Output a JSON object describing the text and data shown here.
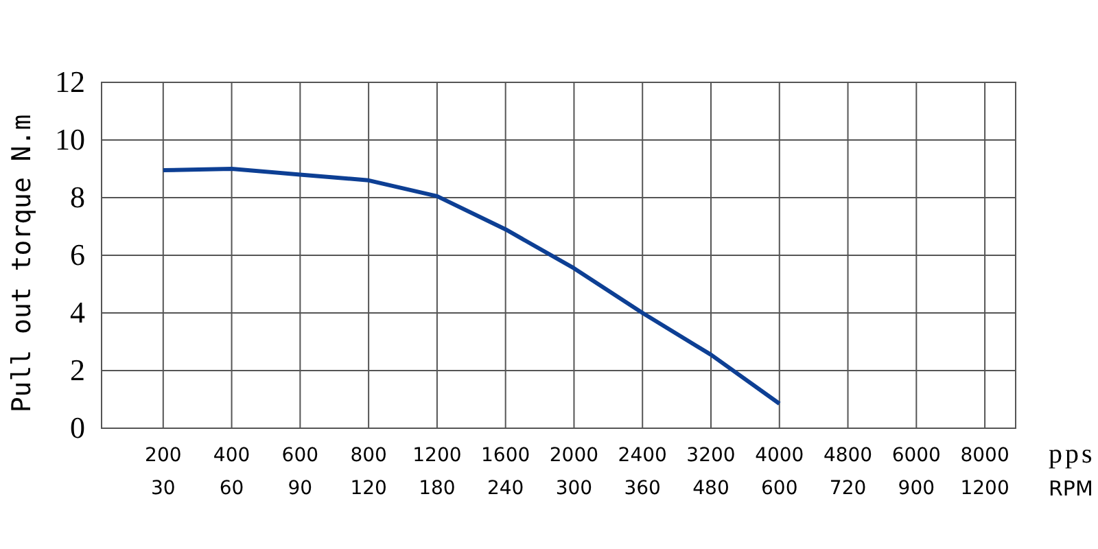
{
  "chart_data": {
    "type": "line",
    "ylabel": "Pull out torque N.m",
    "xlabel": "pps",
    "annotations": [
      "RPM"
    ],
    "categories": [
      "200 30",
      "400 60",
      "600 90",
      "800 120",
      "1200 180",
      "1600 240",
      "2000 300",
      "2400 360",
      "3200 480",
      "4000 600",
      "4800 720",
      "6000 900",
      "8000 1200"
    ],
    "series": [
      {
        "color": "#0d3f94",
        "values": [
          8.95,
          9.0,
          8.8,
          8.6,
          8.05,
          6.9,
          5.55,
          4.0,
          2.55,
          0.85,
          null,
          null,
          null
        ]
      }
    ],
    "ylim": [
      0,
      12
    ],
    "yticks": [
      0,
      2,
      4,
      6,
      8,
      10,
      12
    ],
    "grid": true,
    "line_style": "solid",
    "marker": "none"
  }
}
